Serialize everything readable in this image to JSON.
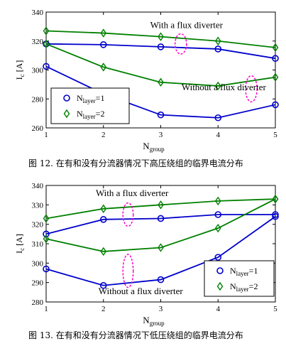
{
  "chart_data": [
    {
      "type": "line",
      "caption": "图 12.  在有和没有分流器情况下高压绕组的临界电流分布",
      "ylabel": "I",
      "ylabel_sub": "c",
      "ylabel_unit": "[A]",
      "xlabel": "N",
      "xlabel_sub": "group",
      "xlim": [
        1,
        5
      ],
      "ylim": [
        260,
        340
      ],
      "xticks": [
        1,
        2,
        3,
        4,
        5
      ],
      "yticks": [
        260,
        280,
        300,
        320,
        340
      ],
      "grid": false,
      "series": [
        {
          "name": "N_layer=1 (with flux diverter)",
          "marker": "circle",
          "color": "#0000cc",
          "x": [
            1,
            2,
            3,
            4,
            5
          ],
          "y": [
            318,
            317.5,
            316,
            314.5,
            308
          ]
        },
        {
          "name": "N_layer=2 (with flux diverter)",
          "marker": "diamond",
          "color": "#008000",
          "x": [
            1,
            2,
            3,
            4,
            5
          ],
          "y": [
            327,
            325.5,
            323,
            320,
            315.5
          ]
        },
        {
          "name": "N_layer=1 (without flux diverter)",
          "marker": "circle",
          "color": "#0000cc",
          "x": [
            1,
            2,
            3,
            4,
            5
          ],
          "y": [
            302.5,
            283.5,
            269,
            267,
            276
          ]
        },
        {
          "name": "N_layer=2 (without flux diverter)",
          "marker": "diamond",
          "color": "#008000",
          "x": [
            1,
            2,
            3,
            4,
            5
          ],
          "y": [
            318,
            302,
            291.5,
            289,
            295
          ]
        }
      ],
      "annotations": [
        {
          "text": "With a flux diverter",
          "x": 3.45,
          "y": 329
        },
        {
          "text": "Without a flux diverter",
          "x": 4.1,
          "y": 286
        }
      ],
      "ellipses": [
        {
          "cx": 3.35,
          "cy": 318,
          "rx_data": 0.1,
          "ry_data": 7,
          "color": "#ff00cc"
        },
        {
          "cx": 4.58,
          "cy": 287,
          "rx_data": 0.1,
          "ry_data": 9,
          "color": "#ff00cc"
        }
      ],
      "legend": {
        "placement": "lower-left",
        "entries": [
          {
            "name": "N",
            "sub": "layer",
            "suffix": "=1",
            "marker": "circle",
            "color": "#0000cc"
          },
          {
            "name": "N",
            "sub": "layer",
            "suffix": "=2",
            "marker": "diamond",
            "color": "#008000"
          }
        ]
      }
    },
    {
      "type": "line",
      "caption": "图 13.  在有和没有分流器情况下低压绕组的临界电流分布",
      "ylabel": "I",
      "ylabel_sub": "c",
      "ylabel_unit": "[A]",
      "xlabel": "N",
      "xlabel_sub": "group",
      "xlim": [
        1,
        5
      ],
      "ylim": [
        280,
        340
      ],
      "xticks": [
        1,
        2,
        3,
        4,
        5
      ],
      "yticks": [
        280,
        290,
        300,
        310,
        320,
        330,
        340
      ],
      "grid": false,
      "series": [
        {
          "name": "N_layer=1 (with flux diverter)",
          "marker": "circle",
          "color": "#0000cc",
          "x": [
            1,
            2,
            3,
            4,
            5
          ],
          "y": [
            315,
            322.5,
            323,
            325,
            325
          ]
        },
        {
          "name": "N_layer=2 (with flux diverter)",
          "marker": "diamond",
          "color": "#008000",
          "x": [
            1,
            2,
            3,
            4,
            5
          ],
          "y": [
            323,
            328,
            330,
            332,
            333
          ]
        },
        {
          "name": "N_layer=1 (without flux diverter)",
          "marker": "circle",
          "color": "#0000cc",
          "x": [
            1,
            2,
            3,
            4,
            5
          ],
          "y": [
            297,
            288.5,
            291.5,
            303,
            324
          ]
        },
        {
          "name": "N_layer=2 (without flux diverter)",
          "marker": "diamond",
          "color": "#008000",
          "x": [
            1,
            2,
            3,
            4,
            5
          ],
          "y": [
            312.5,
            306,
            308,
            318,
            333
          ]
        }
      ],
      "annotations": [
        {
          "text": "With a flux diverter",
          "x": 2.5,
          "y": 334.5
        },
        {
          "text": "Without a flux diverter",
          "x": 2.65,
          "y": 284
        }
      ],
      "ellipses": [
        {
          "cx": 2.43,
          "cy": 325,
          "rx_data": 0.09,
          "ry_data": 6,
          "color": "#ff00cc"
        },
        {
          "cx": 2.43,
          "cy": 296,
          "rx_data": 0.09,
          "ry_data": 8.5,
          "color": "#ff00cc"
        }
      ],
      "legend": {
        "placement": "lower-right",
        "entries": [
          {
            "name": "N",
            "sub": "layer",
            "suffix": "=1",
            "marker": "circle",
            "color": "#0000cc"
          },
          {
            "name": "N",
            "sub": "layer",
            "suffix": "=2",
            "marker": "diamond",
            "color": "#008000"
          }
        ]
      }
    }
  ]
}
